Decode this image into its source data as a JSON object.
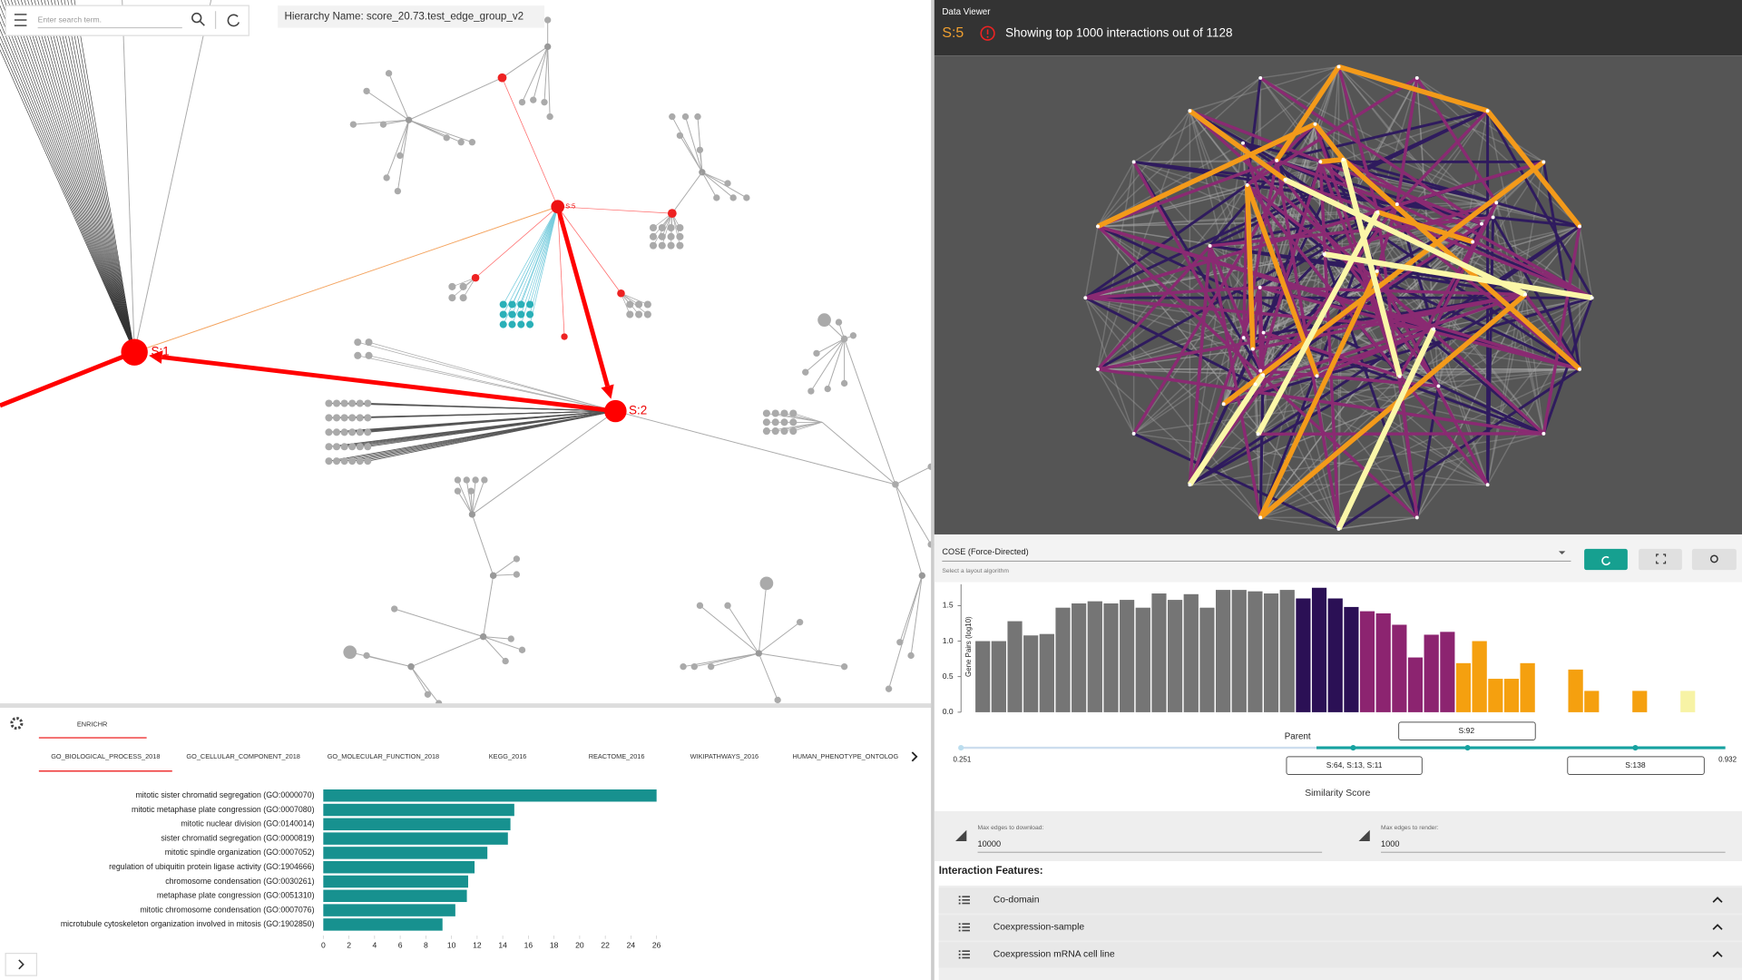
{
  "search": {
    "placeholder": "Enter search term."
  },
  "hierarchy": {
    "name": "Hierarchy Name: score_20.73.test_edge_group_v2",
    "nodes": [
      "S:1",
      "S:2",
      "S:5"
    ]
  },
  "enrichr": {
    "tab": "ENRICHR",
    "libraries": [
      "GO_BIOLOGICAL_PROCESS_2018",
      "GO_CELLULAR_COMPONENT_2018",
      "GO_MOLECULAR_FUNCTION_2018",
      "KEGG_2016",
      "REACTOME_2016",
      "WIKIPATHWAYS_2016",
      "HUMAN_PHENOTYPE_ONTOLOG"
    ]
  },
  "data_viewer": {
    "title": "Data Viewer",
    "selected": "S:5",
    "message": "Showing top 1000 interactions out of 1128"
  },
  "layout": {
    "selected": "COSE (Force-Directed)",
    "helper": "Select a layout algorithm"
  },
  "edge_limits": [
    {
      "label": "Max edges to download:",
      "value": 10000
    },
    {
      "label": "Max edges to render:",
      "value": 1000
    }
  ],
  "interaction_features": {
    "title": "Interaction Features:",
    "items": [
      "Co-domain",
      "Coexpression-sample",
      "Coexpression mRNA cell line"
    ]
  },
  "chart_data": [
    {
      "type": "bar",
      "orientation": "horizontal",
      "color": "#17918f",
      "categories": [
        "mitotic sister chromatid segregation (GO:0000070)",
        "mitotic metaphase plate congression (GO:0007080)",
        "mitotic nuclear division (GO:0140014)",
        "sister chromatid segregation (GO:0000819)",
        "mitotic spindle organization (GO:0007052)",
        "regulation of ubiquitin protein ligase activity (GO:1904666)",
        "chromosome condensation (GO:0030261)",
        "metaphase plate congression (GO:0051310)",
        "mitotic chromosome condensation (GO:0007076)",
        "microtubule cytoskeleton organization involved in mitosis (GO:1902850)"
      ],
      "values": [
        26.0,
        14.9,
        14.6,
        14.4,
        12.8,
        11.8,
        11.3,
        11.2,
        10.3,
        9.3
      ],
      "xlim": [
        0,
        26
      ],
      "xticks": [
        0,
        2,
        4,
        6,
        8,
        10,
        12,
        14,
        16,
        18,
        20,
        22,
        24,
        26
      ]
    },
    {
      "type": "histogram",
      "x_label": "Similarity Score",
      "y_label": "Gene Pairs (log10)",
      "bins": [
        0.251,
        0.2661,
        0.2813,
        0.2964,
        0.3115,
        0.3267,
        0.3418,
        0.3569,
        0.3721,
        0.3872,
        0.4023,
        0.4175,
        0.4326,
        0.4477,
        0.4629,
        0.478,
        0.4931,
        0.5083,
        0.5234,
        0.5385,
        0.5537,
        0.5688,
        0.5839,
        0.5991,
        0.6142,
        0.6293,
        0.6445,
        0.6596,
        0.6747,
        0.6899,
        0.705,
        0.7201,
        0.7353,
        0.7504,
        0.7655,
        0.7807,
        0.7958,
        0.8109,
        0.8261,
        0.8412,
        0.8563,
        0.8715,
        0.8866,
        0.9017,
        0.9169,
        0.932
      ],
      "values": [
        1.0,
        1.0,
        1.28,
        1.08,
        1.1,
        1.47,
        1.53,
        1.56,
        1.53,
        1.58,
        1.47,
        1.67,
        1.58,
        1.66,
        1.47,
        1.72,
        1.72,
        1.7,
        1.67,
        1.72,
        1.6,
        1.75,
        1.6,
        1.48,
        1.42,
        1.39,
        1.23,
        0.77,
        1.09,
        1.13,
        0.69,
        1.0,
        0.47,
        0.47,
        0.69,
        0,
        0,
        0.6,
        0.3,
        0,
        0,
        0.3,
        0,
        0,
        0.3
      ],
      "colors": [
        "#757575",
        "#757575",
        "#757575",
        "#757575",
        "#757575",
        "#757575",
        "#757575",
        "#757575",
        "#757575",
        "#757575",
        "#757575",
        "#757575",
        "#757575",
        "#757575",
        "#757575",
        "#757575",
        "#757575",
        "#757575",
        "#757575",
        "#757575",
        "#2b1055",
        "#2b1055",
        "#2b1055",
        "#2b1055",
        "#8c2470",
        "#8c2470",
        "#8c2470",
        "#8c2470",
        "#8c2470",
        "#8c2470",
        "#f5a00f",
        "#f5a00f",
        "#f5a00f",
        "#f5a00f",
        "#f5a00f",
        "#f5a00f",
        "#f5a00f",
        "#f5a00f",
        "#f5a00f",
        "#f5a00f",
        "#f5a00f",
        "#f5a00f",
        "#f5a00f",
        "#f5a00f",
        "#f7f3a5"
      ],
      "xlim": [
        0.251,
        0.932
      ],
      "ylim": [
        0,
        1.8
      ],
      "yticks": [
        {
          "value": 0,
          "label": "0.0"
        },
        {
          "value": 0.5,
          "label": "0.5"
        },
        {
          "value": 1,
          "label": "1.0"
        },
        {
          "value": 1.5,
          "label": "1.5"
        }
      ],
      "annotations": [
        "Parent",
        "S:92",
        "S:64, S:13, S:11",
        "S:138"
      ]
    }
  ]
}
